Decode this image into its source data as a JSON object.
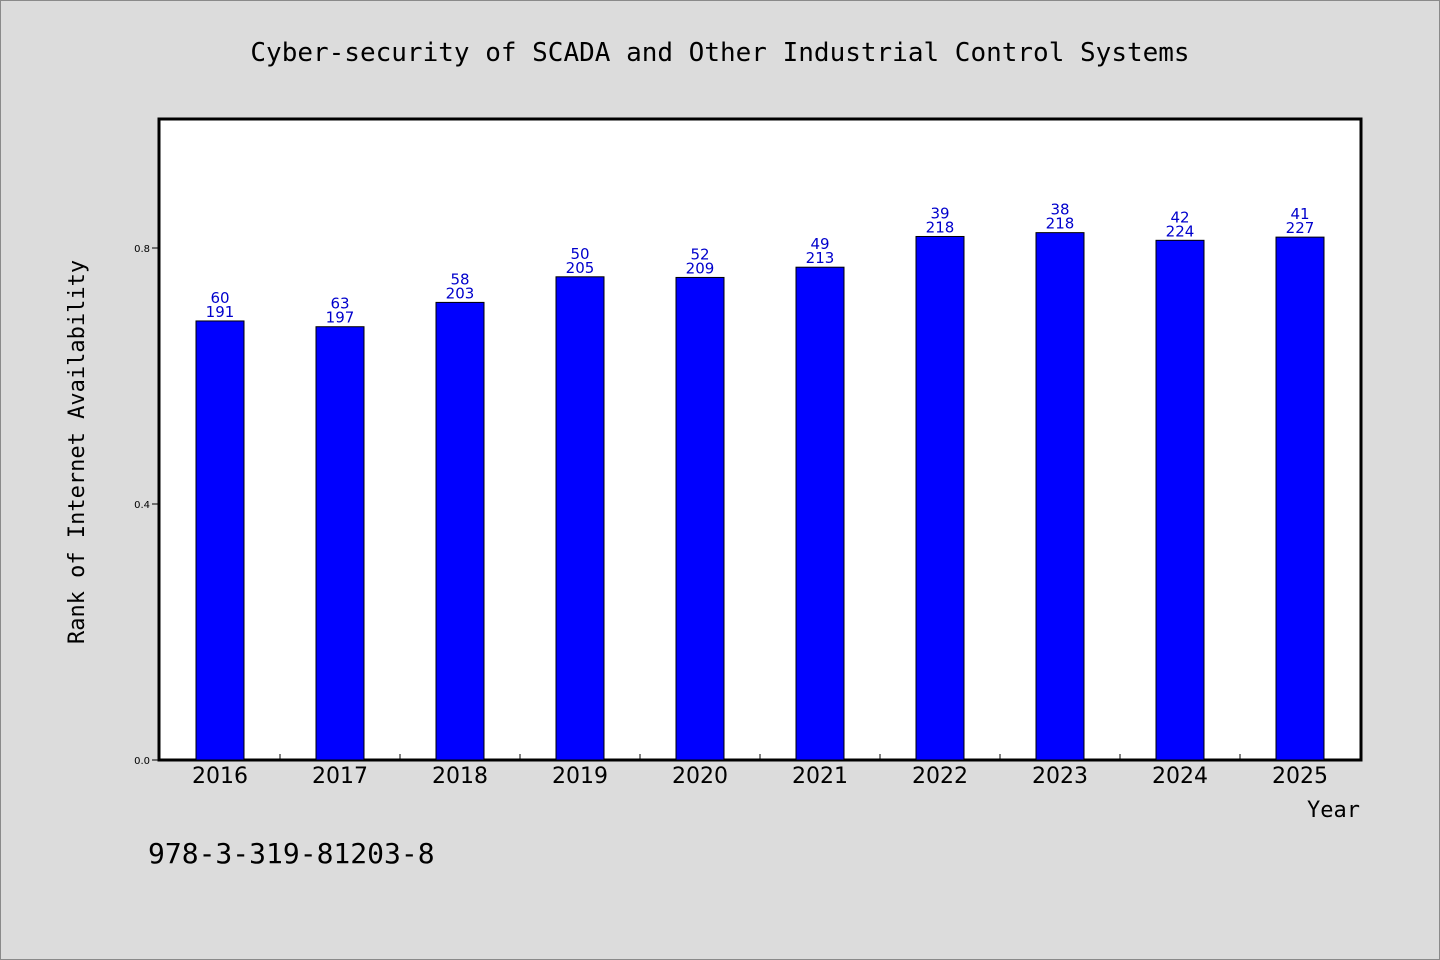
{
  "chart_data": {
    "type": "bar",
    "title": "Cyber-security of SCADA and Other Industrial Control Systems",
    "xlabel": "Year",
    "ylabel": "Rank of Internet Availability",
    "categories": [
      "2016",
      "2017",
      "2018",
      "2019",
      "2020",
      "2021",
      "2022",
      "2023",
      "2024",
      "2025"
    ],
    "series": [
      {
        "values": [
          0.686,
          0.677,
          0.715,
          0.755,
          0.754,
          0.77,
          0.818,
          0.824,
          0.812,
          0.817
        ]
      }
    ],
    "data_labels_top": [
      "60",
      "63",
      "58",
      "50",
      "52",
      "49",
      "39",
      "38",
      "42",
      "41"
    ],
    "data_labels_bottom": [
      "191",
      "197",
      "203",
      "205",
      "209",
      "213",
      "218",
      "218",
      "224",
      "227"
    ],
    "ylim": [
      0,
      1.0
    ],
    "yticks": [
      "0.0",
      "0.4",
      "0.8"
    ],
    "ytick_values": [
      0.0,
      0.4,
      0.8
    ],
    "bar_color": "#0000ff",
    "label_color": "#0000cc",
    "background": "#dcdcdc",
    "plot_background": "#ffffff",
    "grid": false,
    "legend": "none"
  },
  "footer_text": "978-3-319-81203-8"
}
